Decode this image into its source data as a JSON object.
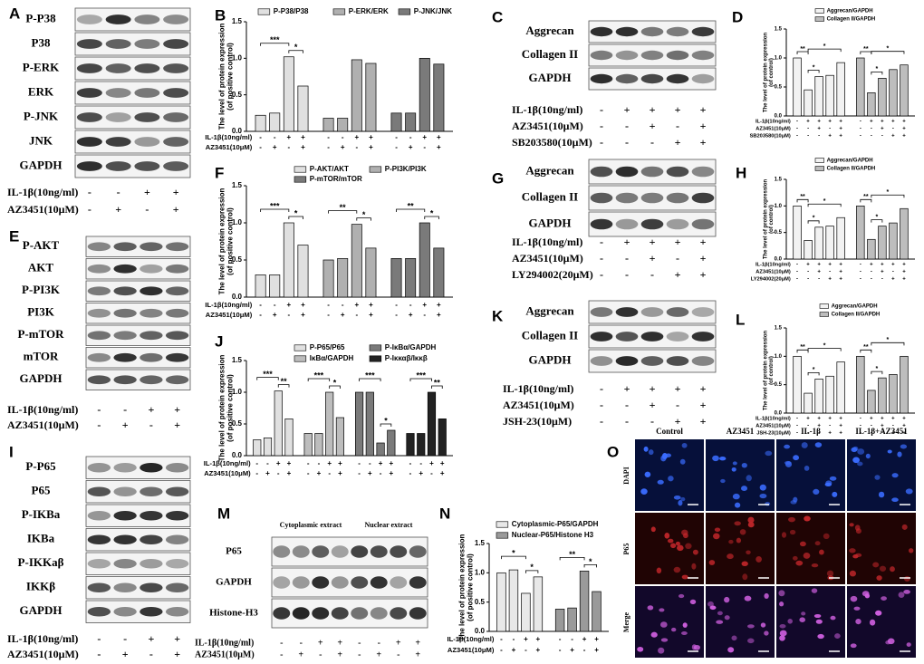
{
  "letters": [
    "A",
    "B",
    "C",
    "D",
    "E",
    "F",
    "G",
    "H",
    "I",
    "J",
    "K",
    "L",
    "M",
    "N",
    "O"
  ],
  "blots": [
    {
      "rows": [
        "P-P38",
        "P38",
        "P-ERK",
        "ERK",
        "P-JNK",
        "JNK",
        "GAPDH"
      ],
      "treatments": [
        {
          "label": "IL-1β(10ng/ml)",
          "signs": [
            "-",
            "-",
            "+",
            "+"
          ]
        },
        {
          "label": "AZ3451(10μM)",
          "signs": [
            "-",
            "+",
            "-",
            "+"
          ]
        }
      ]
    },
    {
      "rows": [
        "Aggrecan",
        "Collagen II",
        "GAPDH"
      ],
      "treatments": [
        {
          "label": "IL-1β(10ng/ml)",
          "signs": [
            "-",
            "+",
            "+",
            "+",
            "+"
          ]
        },
        {
          "label": "AZ3451(10μM)",
          "signs": [
            "-",
            "-",
            "+",
            "-",
            "+"
          ]
        },
        {
          "label": "SB203580(10μM)",
          "signs": [
            "-",
            "-",
            "-",
            "+",
            "+"
          ]
        }
      ]
    },
    {
      "rows": [
        "P-AKT",
        "AKT",
        "P-PI3K",
        "PI3K",
        "P-mTOR",
        "mTOR",
        "GAPDH"
      ],
      "treatments": [
        {
          "label": "IL-1β(10ng/ml)",
          "signs": [
            "-",
            "-",
            "+",
            "+"
          ]
        },
        {
          "label": "AZ3451(10μM)",
          "signs": [
            "-",
            "+",
            "-",
            "+"
          ]
        }
      ]
    },
    {
      "rows": [
        "Aggrecan",
        "Collagen II",
        "GAPDH"
      ],
      "treatments": [
        {
          "label": "IL-1β(10ng/ml)",
          "signs": [
            "-",
            "+",
            "+",
            "+",
            "+"
          ]
        },
        {
          "label": "AZ3451(10μM)",
          "signs": [
            "-",
            "-",
            "+",
            "-",
            "+"
          ]
        },
        {
          "label": "LY294002(20μM)",
          "signs": [
            "-",
            "-",
            "-",
            "+",
            "+"
          ]
        }
      ]
    },
    {
      "rows": [
        "P-P65",
        "P65",
        "P-IKBa",
        "IKBa",
        "P-IKKaβ",
        "IKKβ",
        "GAPDH"
      ],
      "treatments": [
        {
          "label": "IL-1β(10ng/ml)",
          "signs": [
            "-",
            "-",
            "+",
            "+"
          ]
        },
        {
          "label": "AZ3451(10μM)",
          "signs": [
            "-",
            "+",
            "-",
            "+"
          ]
        }
      ]
    },
    {
      "rows": [
        "Aggrecan",
        "Collagen II",
        "GAPDH"
      ],
      "treatments": [
        {
          "label": "IL-1β(10ng/ml)",
          "signs": [
            "-",
            "+",
            "+",
            "+",
            "+"
          ]
        },
        {
          "label": "AZ3451(10μM)",
          "signs": [
            "-",
            "-",
            "+",
            "-",
            "+"
          ]
        },
        {
          "label": "JSH-23(10μM)",
          "signs": [
            "-",
            "-",
            "-",
            "+",
            "+"
          ]
        }
      ]
    },
    {
      "headers": [
        "Cytoplasmic extract",
        "Nuclear extract"
      ],
      "rows": [
        "P65",
        "GAPDH",
        "Histone-H3"
      ],
      "treatments": [
        {
          "label": "IL-1β(10ng/ml)",
          "signs": [
            "-",
            "-",
            "+",
            "+",
            "-",
            "-",
            "+",
            "+"
          ]
        },
        {
          "label": "AZ3451(10μM)",
          "signs": [
            "-",
            "+",
            "-",
            "+",
            "-",
            "+",
            "-",
            "+"
          ]
        }
      ]
    }
  ],
  "chart_data": [
    {
      "type": "bar",
      "ylabel": [
        "The level of protein expression",
        "(of positive control)"
      ],
      "ylim": [
        0,
        1.5
      ],
      "yticks": [
        {
          "value": 0,
          "label": "0.0"
        },
        {
          "value": 0.5,
          "label": "0.5"
        },
        {
          "value": 1,
          "label": "1.0"
        },
        {
          "value": 1.5,
          "label": "1.5"
        }
      ],
      "series": [
        {
          "name": "P-P38/P38",
          "color": "#e0e0e0",
          "values": [
            0.22,
            0.25,
            1.02,
            0.62
          ]
        },
        {
          "name": "P-ERK/ERK",
          "color": "#b0b0b0",
          "values": [
            0.18,
            0.18,
            0.98,
            0.93
          ]
        },
        {
          "name": "P-JNK/JNK",
          "color": "#7a7a7a",
          "values": [
            0.25,
            0.25,
            1.0,
            0.92
          ]
        }
      ],
      "treatments": [
        {
          "label": "IL-1β(10ng/ml)",
          "signs": [
            "-",
            "-",
            "+",
            "+",
            "-",
            "-",
            "+",
            "+",
            "-",
            "-",
            "+",
            "+"
          ]
        },
        {
          "label": "AZ3451(10μM)",
          "signs": [
            "-",
            "+",
            "-",
            "+",
            "-",
            "+",
            "-",
            "+",
            "-",
            "+",
            "-",
            "+"
          ]
        }
      ],
      "significance": [
        "***",
        "*"
      ]
    },
    {
      "type": "bar",
      "ylabel": [
        "The level of protein expression",
        "(of control)"
      ],
      "ylim": [
        0,
        1.5
      ],
      "yticks": [
        {
          "value": 0,
          "label": "0.0"
        },
        {
          "value": 0.5,
          "label": "0.5"
        },
        {
          "value": 1,
          "label": "1.0"
        },
        {
          "value": 1.5,
          "label": "1.5"
        }
      ],
      "series": [
        {
          "name": "Aggrecan/GAPDH",
          "color": "#f2f2f2",
          "values": [
            1.0,
            0.45,
            0.68,
            0.7,
            0.92
          ]
        },
        {
          "name": "Collagen II/GAPDH",
          "color": "#bdbdbd",
          "values": [
            1.0,
            0.4,
            0.65,
            0.8,
            0.88
          ]
        }
      ],
      "treatments": [
        {
          "label": "IL-1β(10ng/ml)",
          "signs": [
            "-",
            "+",
            "+",
            "+",
            "+",
            "-",
            "+",
            "+",
            "+",
            "+"
          ]
        },
        {
          "label": "AZ3451(10μM)",
          "signs": [
            "-",
            "-",
            "+",
            "-",
            "+",
            "-",
            "-",
            "+",
            "-",
            "+"
          ]
        },
        {
          "label": "SB203580(10μM)",
          "signs": [
            "-",
            "-",
            "-",
            "+",
            "+",
            "-",
            "-",
            "-",
            "+",
            "+"
          ]
        }
      ],
      "significance": [
        "**",
        "*",
        "*",
        "**",
        "*",
        "*"
      ]
    },
    {
      "type": "bar",
      "ylabel": [
        "The level of protein expression",
        "(of positive control)"
      ],
      "ylim": [
        0,
        1.5
      ],
      "yticks": [
        {
          "value": 0,
          "label": "0.0"
        },
        {
          "value": 0.5,
          "label": "0.5"
        },
        {
          "value": 1,
          "label": "1.0"
        },
        {
          "value": 1.5,
          "label": "1.5"
        }
      ],
      "series": [
        {
          "name": "P-AKT/AKT",
          "color": "#e0e0e0",
          "values": [
            0.3,
            0.3,
            1.0,
            0.7
          ]
        },
        {
          "name": "P-PI3K/PI3K",
          "color": "#b0b0b0",
          "values": [
            0.5,
            0.52,
            0.98,
            0.66
          ]
        },
        {
          "name": "P-mTOR/mTOR",
          "color": "#7a7a7a",
          "values": [
            0.52,
            0.52,
            1.0,
            0.66
          ]
        }
      ],
      "treatments": [
        {
          "label": "IL-1β(10ng/ml)",
          "signs": [
            "-",
            "-",
            "+",
            "+",
            "-",
            "-",
            "+",
            "+",
            "-",
            "-",
            "+",
            "+"
          ]
        },
        {
          "label": "AZ3451(10μM)",
          "signs": [
            "-",
            "+",
            "-",
            "+",
            "-",
            "+",
            "-",
            "+",
            "-",
            "+",
            "-",
            "+"
          ]
        }
      ],
      "significance": [
        "***",
        "*",
        "**",
        "*",
        "**",
        "*"
      ]
    },
    {
      "type": "bar",
      "ylabel": [
        "The level of protein expression",
        "(of control)"
      ],
      "ylim": [
        0,
        1.5
      ],
      "yticks": [
        {
          "value": 0,
          "label": "0.0"
        },
        {
          "value": 0.5,
          "label": "0.5"
        },
        {
          "value": 1,
          "label": "1.0"
        },
        {
          "value": 1.5,
          "label": "1.5"
        }
      ],
      "series": [
        {
          "name": "Aggrecan/GAPDH",
          "color": "#f2f2f2",
          "values": [
            1.0,
            0.35,
            0.6,
            0.62,
            0.78
          ]
        },
        {
          "name": "Collagen II/GAPDH",
          "color": "#bdbdbd",
          "values": [
            1.0,
            0.37,
            0.62,
            0.68,
            0.95
          ]
        }
      ],
      "treatments": [
        {
          "label": "IL-1β(10ng/ml)",
          "signs": [
            "-",
            "+",
            "+",
            "+",
            "+",
            "-",
            "+",
            "+",
            "+",
            "+"
          ]
        },
        {
          "label": "AZ3451(10μM)",
          "signs": [
            "-",
            "-",
            "+",
            "-",
            "+",
            "-",
            "-",
            "+",
            "-",
            "+"
          ]
        },
        {
          "label": "LY294002(20μM)",
          "signs": [
            "-",
            "-",
            "-",
            "+",
            "+",
            "-",
            "-",
            "-",
            "+",
            "+"
          ]
        }
      ],
      "significance": [
        "**",
        "*",
        "*",
        "**",
        "*",
        "*"
      ]
    },
    {
      "type": "bar",
      "ylabel": [
        "The level of protein expression",
        "(of positive control)"
      ],
      "ylim": [
        0,
        1.5
      ],
      "yticks": [
        {
          "value": 0,
          "label": "0.0"
        },
        {
          "value": 0.5,
          "label": "0.5"
        },
        {
          "value": 1,
          "label": "1.0"
        },
        {
          "value": 1.5,
          "label": "1.5"
        }
      ],
      "series": [
        {
          "name": "P-P65/P65",
          "color": "#e0e0e0",
          "values": [
            0.25,
            0.28,
            1.02,
            0.58
          ]
        },
        {
          "name": "IκBα/GAPDH",
          "color": "#bdbdbd",
          "values": [
            0.35,
            0.35,
            1.0,
            0.6
          ]
        },
        {
          "name": "P-IκBα/GAPDH",
          "color": "#7a7a7a",
          "values": [
            1.0,
            1.0,
            0.2,
            0.4
          ]
        },
        {
          "name": "P-Iκκαβ/Iκκβ",
          "color": "#222222",
          "values": [
            0.35,
            0.35,
            1.0,
            0.58
          ]
        }
      ],
      "treatments": [
        {
          "label": "IL-1β(10ng/ml)",
          "signs": [
            "-",
            "-",
            "+",
            "+",
            "-",
            "-",
            "+",
            "+",
            "-",
            "-",
            "+",
            "+",
            "-",
            "-",
            "+",
            "+"
          ]
        },
        {
          "label": "AZ3451(10μM)",
          "signs": [
            "-",
            "+",
            "-",
            "+",
            "-",
            "+",
            "-",
            "+",
            "-",
            "+",
            "-",
            "+",
            "-",
            "+",
            "-",
            "+"
          ]
        }
      ],
      "significance": [
        "***",
        "**",
        "***",
        "*",
        "***",
        "*",
        "***",
        "**"
      ]
    },
    {
      "type": "bar",
      "ylabel": [
        "The level of protein expression",
        "(of control)"
      ],
      "ylim": [
        0,
        1.5
      ],
      "yticks": [
        {
          "value": 0,
          "label": "0.0"
        },
        {
          "value": 0.5,
          "label": "0.5"
        },
        {
          "value": 1,
          "label": "1.0"
        },
        {
          "value": 1.5,
          "label": "1.5"
        }
      ],
      "series": [
        {
          "name": "Aggrecan/GAPDH",
          "color": "#f2f2f2",
          "values": [
            1.0,
            0.35,
            0.6,
            0.65,
            0.9
          ]
        },
        {
          "name": "Collagen II/GAPDH",
          "color": "#bdbdbd",
          "values": [
            1.0,
            0.4,
            0.62,
            0.68,
            1.0
          ]
        }
      ],
      "treatments": [
        {
          "label": "IL-1β(10ng/ml)",
          "signs": [
            "-",
            "+",
            "+",
            "+",
            "+",
            "-",
            "+",
            "+",
            "+",
            "+"
          ]
        },
        {
          "label": "AZ3451(10μM)",
          "signs": [
            "-",
            "-",
            "+",
            "-",
            "+",
            "-",
            "-",
            "+",
            "-",
            "+"
          ]
        },
        {
          "label": "JSH-23(10μM)",
          "signs": [
            "-",
            "-",
            "-",
            "+",
            "+",
            "-",
            "-",
            "-",
            "+",
            "+"
          ]
        }
      ],
      "significance": [
        "**",
        "*",
        "*",
        "**",
        "*",
        "*"
      ]
    },
    {
      "type": "bar",
      "ylabel": [
        "The level of protein expression",
        "(of positive control)"
      ],
      "ylim": [
        0,
        1.5
      ],
      "yticks": [
        {
          "value": 0,
          "label": "0.0"
        },
        {
          "value": 0.5,
          "label": "0.5"
        },
        {
          "value": 1,
          "label": "1.0"
        },
        {
          "value": 1.5,
          "label": "1.5"
        }
      ],
      "series": [
        {
          "name": "Cytoplasmic-P65/GAPDH",
          "color": "#e8e8e8",
          "values": [
            1.0,
            1.05,
            0.65,
            0.93
          ]
        },
        {
          "name": "Nuclear-P65/Histone H3",
          "color": "#9a9a9a",
          "values": [
            0.38,
            0.4,
            1.03,
            0.68
          ]
        }
      ],
      "treatments": [
        {
          "label": "IL-1β(10ng/ml)",
          "signs": [
            "-",
            "-",
            "+",
            "+",
            "-",
            "-",
            "+",
            "+"
          ]
        },
        {
          "label": "AZ3451(10μM)",
          "signs": [
            "-",
            "+",
            "-",
            "+",
            "-",
            "+",
            "-",
            "+"
          ]
        }
      ],
      "significance": [
        "*",
        "*",
        "**",
        "*"
      ]
    }
  ],
  "if_panel": {
    "columns": [
      "Control",
      "AZ3451",
      "IL-1β",
      "IL-1β+AZ3451"
    ],
    "rows": [
      "DAPI",
      "P65",
      "Merge"
    ]
  }
}
